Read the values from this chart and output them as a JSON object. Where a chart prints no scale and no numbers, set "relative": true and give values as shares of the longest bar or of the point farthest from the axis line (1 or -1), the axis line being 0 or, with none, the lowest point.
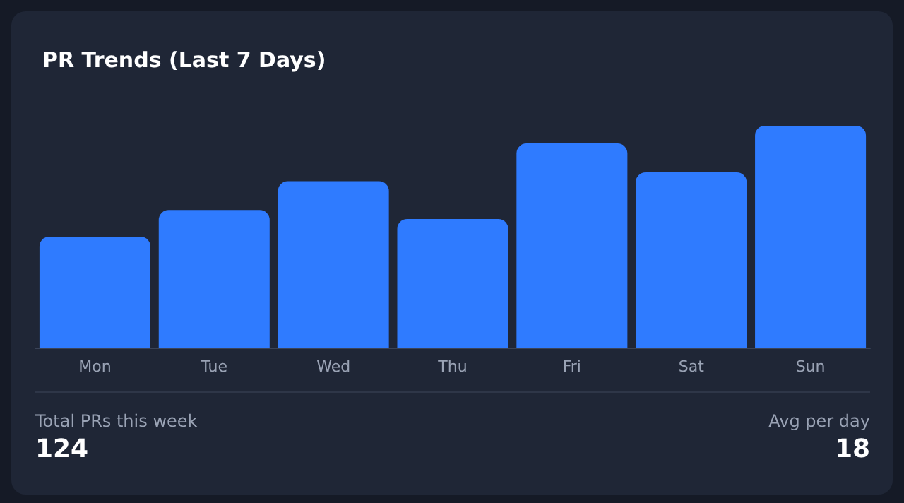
{
  "chart_data": {
    "type": "bar",
    "title": "PR Trends (Last 7 Days)",
    "relative": true,
    "categories": [
      "Mon",
      "Tue",
      "Wed",
      "Thu",
      "Fri",
      "Sat",
      "Sun"
    ],
    "values": [
      0.5,
      0.62,
      0.75,
      0.58,
      0.92,
      0.79,
      1
    ],
    "color": "#2f7bff",
    "annotations": [
      "Total PRs this week",
      "124",
      "Avg per day",
      "18"
    ]
  }
}
